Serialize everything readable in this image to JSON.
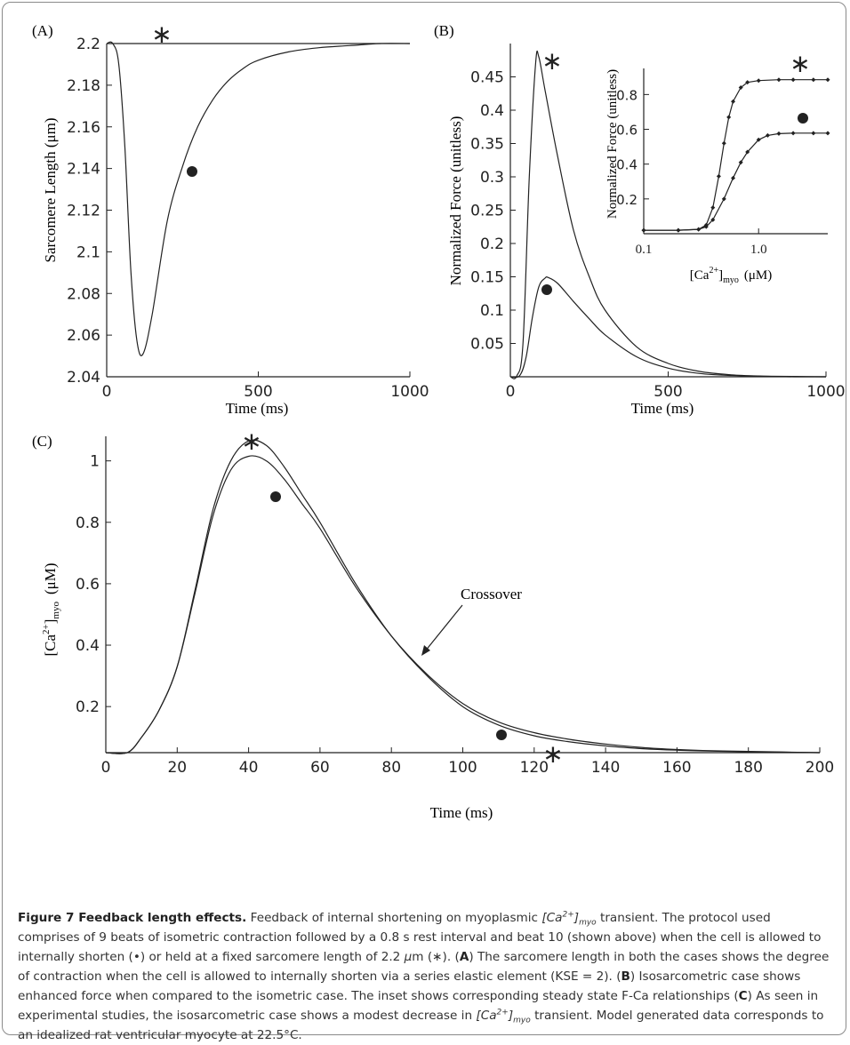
{
  "panels": {
    "A": {
      "label": "(A)",
      "ylabel": "Sarcomere Length (μm)",
      "xlabel": "Time (ms)"
    },
    "B": {
      "label": "(B)",
      "ylabel": "Normalized Force (unitless)",
      "xlabel": "Time (ms)",
      "inset": {
        "ylabel": "Normalized Force (unitless)",
        "xlabel_main": "[Ca",
        "xlabel_sup": "2+",
        "xlabel_close": "]",
        "xlabel_sub": "myo",
        "xlabel_unit": "(μM)"
      }
    },
    "C": {
      "label": "(C)",
      "ylabel_main": "[Ca",
      "ylabel_sup": "2+",
      "ylabel_close": "]",
      "ylabel_sub": "myo",
      "ylabel_unit": "(μM)",
      "xlabel": "Time (ms)",
      "annotation": "Crossover"
    }
  },
  "markers": {
    "isometric": "*",
    "isosarcometric": "●"
  },
  "caption": {
    "title": "Figure 7 Feedback length effects.",
    "s1": " Feedback of internal shortening on myoplasmic ",
    "ca_open": "[Ca",
    "ca_sup": "2+",
    "ca_close": "]",
    "ca_sub": "myo",
    "s2": " transient. The protocol used comprises of 9 beats of isometric contraction followed by a 0.8 s rest interval and beat 10 (shown above) when the cell is allowed to internally shorten (•) or held at a fixed sarcomere length of 2.2 ",
    "mu": "μ",
    "s3": "m (∗). (",
    "A": "A",
    "s4": ") The sarcomere length in both the cases shows the degree of contraction when the cell is allowed to internally shorten via a series elastic element (KSE = 2). (",
    "B": "B",
    "s5": ") Isosarcometric case shows enhanced force when compared to the isometric case. The inset shows corresponding steady state F-Ca relationships (",
    "C": "C",
    "s6": ") As seen in experimental studies, the isosarcometric case shows a modest decrease in ",
    "s7": " transient. Model generated data corresponds to an idealized rat ventricular myocyte at 22.5°C."
  },
  "chart_data": [
    {
      "type": "line",
      "panel": "A",
      "xlabel": "Time (ms)",
      "ylabel": "Sarcomere Length (μm)",
      "xlim": [
        0,
        1000
      ],
      "ylim": [
        2.04,
        2.2
      ],
      "xticks": [
        "0",
        "500",
        "1000"
      ],
      "yticks": [
        "2.04",
        "2.06",
        "2.08",
        "2.1",
        "2.12",
        "2.14",
        "2.16",
        "2.18",
        "2.2"
      ],
      "series": [
        {
          "marker": "*",
          "x": [
            0,
            1000
          ],
          "y": [
            2.2,
            2.2
          ]
        },
        {
          "marker": "●",
          "x": [
            0,
            20,
            40,
            60,
            80,
            100,
            120,
            150,
            200,
            250,
            300,
            350,
            400,
            450,
            500,
            600,
            700,
            800,
            900,
            1000
          ],
          "y": [
            2.2,
            2.2,
            2.19,
            2.15,
            2.09,
            2.057,
            2.051,
            2.07,
            2.115,
            2.141,
            2.16,
            2.173,
            2.182,
            2.188,
            2.192,
            2.196,
            2.198,
            2.199,
            2.2,
            2.2
          ]
        }
      ]
    },
    {
      "type": "line",
      "panel": "B",
      "xlabel": "Time (ms)",
      "ylabel": "Normalized Force (unitless)",
      "xlim": [
        0,
        1000
      ],
      "ylim": [
        0,
        0.5
      ],
      "xticks": [
        "0",
        "500",
        "1000"
      ],
      "yticks": [
        "0.05",
        "0.1",
        "0.15",
        "0.2",
        "0.25",
        "0.3",
        "0.35",
        "0.4",
        "0.45"
      ],
      "series": [
        {
          "marker": "*",
          "x": [
            0,
            20,
            40,
            60,
            80,
            90,
            110,
            150,
            200,
            250,
            300,
            400,
            500,
            600,
            700,
            800,
            900,
            1000
          ],
          "y": [
            0,
            0.001,
            0.05,
            0.3,
            0.47,
            0.48,
            0.43,
            0.33,
            0.22,
            0.15,
            0.1,
            0.045,
            0.02,
            0.008,
            0.003,
            0.001,
            0,
            0
          ]
        },
        {
          "marker": "●",
          "x": [
            0,
            30,
            50,
            70,
            90,
            110,
            120,
            150,
            200,
            250,
            300,
            400,
            500,
            600,
            700,
            800,
            1000
          ],
          "y": [
            0,
            0.002,
            0.03,
            0.09,
            0.135,
            0.148,
            0.149,
            0.14,
            0.113,
            0.087,
            0.063,
            0.03,
            0.013,
            0.005,
            0.002,
            0.001,
            0
          ]
        }
      ]
    },
    {
      "type": "line",
      "panel": "B-inset",
      "xlabel": "[Ca2+]myo (μM)",
      "ylabel": "Normalized Force (unitless)",
      "xscale": "log",
      "xlim": [
        0.1,
        4
      ],
      "ylim": [
        0,
        0.95
      ],
      "xticks": [
        "0.1",
        "1.0"
      ],
      "yticks": [
        "0.2",
        "0.4",
        "0.6",
        "0.8"
      ],
      "series": [
        {
          "marker": "*",
          "x": [
            0.1,
            0.2,
            0.3,
            0.35,
            0.4,
            0.45,
            0.5,
            0.55,
            0.6,
            0.7,
            0.8,
            1.0,
            1.5,
            2,
            3,
            4
          ],
          "y": [
            0.02,
            0.02,
            0.025,
            0.05,
            0.15,
            0.33,
            0.52,
            0.67,
            0.76,
            0.84,
            0.87,
            0.88,
            0.885,
            0.885,
            0.885,
            0.885
          ]
        },
        {
          "marker": "●",
          "x": [
            0.1,
            0.2,
            0.3,
            0.35,
            0.4,
            0.5,
            0.6,
            0.7,
            0.8,
            1.0,
            1.2,
            1.5,
            2,
            3,
            4
          ],
          "y": [
            0.02,
            0.02,
            0.025,
            0.04,
            0.08,
            0.2,
            0.32,
            0.41,
            0.47,
            0.54,
            0.565,
            0.575,
            0.578,
            0.578,
            0.578
          ]
        }
      ]
    },
    {
      "type": "line",
      "panel": "C",
      "xlabel": "Time (ms)",
      "ylabel": "[Ca2+]myo (μM)",
      "xlim": [
        0,
        200
      ],
      "ylim": [
        0.05,
        1.08
      ],
      "xticks": [
        "0",
        "20",
        "40",
        "60",
        "80",
        "100",
        "120",
        "140",
        "160",
        "180",
        "200"
      ],
      "yticks": [
        "0.2",
        "0.4",
        "0.6",
        "0.8",
        "1"
      ],
      "series": [
        {
          "marker": "●",
          "x": [
            0,
            6,
            10,
            15,
            20,
            25,
            30,
            35,
            40,
            45,
            50,
            55,
            60,
            70,
            80,
            90,
            100,
            110,
            120,
            130,
            140,
            150,
            160,
            170,
            180,
            200
          ],
          "y": [
            0.05,
            0.05,
            0.1,
            0.19,
            0.33,
            0.58,
            0.84,
            1.0,
            1.065,
            1.05,
            0.98,
            0.89,
            0.8,
            0.6,
            0.43,
            0.3,
            0.2,
            0.14,
            0.105,
            0.085,
            0.072,
            0.063,
            0.058,
            0.055,
            0.053,
            0.05
          ]
        },
        {
          "marker": "*",
          "x": [
            0,
            6,
            10,
            15,
            20,
            25,
            30,
            35,
            40,
            45,
            50,
            55,
            60,
            70,
            80,
            90,
            100,
            110,
            120,
            130,
            140,
            150,
            160,
            170,
            180,
            200
          ],
          "y": [
            0.05,
            0.05,
            0.1,
            0.19,
            0.33,
            0.57,
            0.82,
            0.97,
            1.015,
            1.0,
            0.94,
            0.86,
            0.78,
            0.59,
            0.43,
            0.305,
            0.21,
            0.15,
            0.115,
            0.093,
            0.078,
            0.067,
            0.06,
            0.056,
            0.054,
            0.05
          ]
        }
      ]
    }
  ]
}
